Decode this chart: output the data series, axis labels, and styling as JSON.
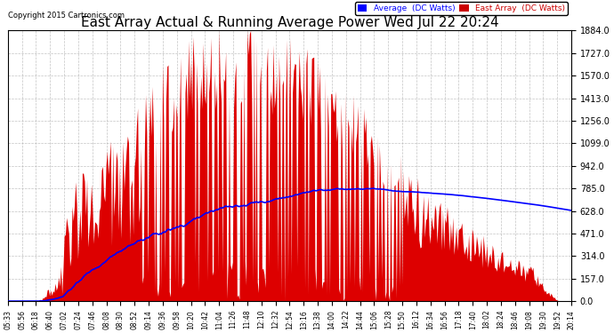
{
  "title": "East Array Actual & Running Average Power Wed Jul 22 20:24",
  "copyright": "Copyright 2015 Cartronics.com",
  "ylabel_right_ticks": [
    0.0,
    157.0,
    314.0,
    471.0,
    628.0,
    785.0,
    942.0,
    1099.0,
    1256.0,
    1413.0,
    1570.0,
    1727.0,
    1884.0
  ],
  "ymax": 1884.0,
  "ymin": 0.0,
  "background_color": "#ffffff",
  "plot_bg_color": "#ffffff",
  "grid_color": "#aaaaaa",
  "title_fontsize": 11,
  "legend_labels": [
    "Average  (DC Watts)",
    "East Array  (DC Watts)"
  ],
  "legend_colors": [
    "#0000ff",
    "#cc0000"
  ],
  "area_color": "#dd0000",
  "line_color": "#0000ff",
  "x_tick_labels": [
    "05:33",
    "05:56",
    "06:18",
    "06:40",
    "07:02",
    "07:24",
    "07:46",
    "08:08",
    "08:30",
    "08:52",
    "09:14",
    "09:36",
    "09:58",
    "10:20",
    "10:42",
    "11:04",
    "11:26",
    "11:48",
    "12:10",
    "12:32",
    "12:54",
    "13:16",
    "13:38",
    "14:00",
    "14:22",
    "14:44",
    "15:06",
    "15:28",
    "15:50",
    "16:12",
    "16:34",
    "16:56",
    "17:18",
    "17:40",
    "18:02",
    "18:24",
    "18:46",
    "19:08",
    "19:30",
    "19:52",
    "20:14"
  ]
}
